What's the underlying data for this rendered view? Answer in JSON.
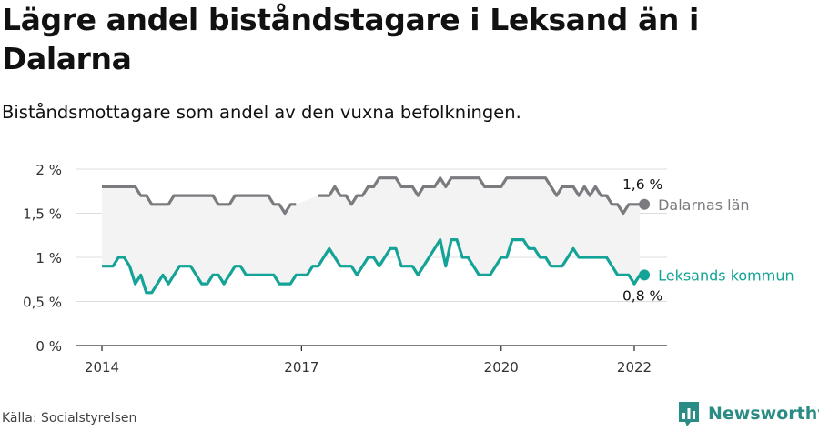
{
  "title": "Lägre andel biståndstagare i Leksand än i Dalarna",
  "subtitle": "Biståndsmottagare som andel av den vuxna befolkningen.",
  "source": "Källa: Socialstyrelsen",
  "brand": {
    "name": "Newsworthy",
    "logo_icon": "bar-chart-logo-icon"
  },
  "colors": {
    "grey_series": "#7a7a7f",
    "teal_series": "#14a396",
    "band": "#f3f3f3",
    "grid": "#dddddd"
  },
  "chart_data": {
    "type": "line",
    "title": "Lägre andel biståndstagare i Leksand än i Dalarna",
    "subtitle": "Biståndsmottagare som andel av den vuxna befolkningen.",
    "y_ticks": [
      0,
      0.5,
      1,
      1.5,
      2
    ],
    "y_tick_labels": [
      "0 %",
      "0,5 %",
      "1 %",
      "1,5 %",
      "2 %"
    ],
    "ylim": [
      0,
      2
    ],
    "x_ticks": [
      2014,
      2017,
      2020,
      2022
    ],
    "x_tick_labels": [
      "2014",
      "2017",
      "2020",
      "2022"
    ],
    "xlim": [
      2014,
      2022
    ],
    "grid": true,
    "series": [
      {
        "name": "Dalarnas län",
        "end_label": "1,6 %",
        "color": "#7a7a7f",
        "points": [
          [
            "2014-01",
            1.8
          ],
          [
            "2014-02",
            1.8
          ],
          [
            "2014-03",
            1.8
          ],
          [
            "2014-04",
            1.8
          ],
          [
            "2014-05",
            1.8
          ],
          [
            "2014-06",
            1.8
          ],
          [
            "2014-07",
            1.8
          ],
          [
            "2014-08",
            1.7
          ],
          [
            "2014-09",
            1.7
          ],
          [
            "2014-10",
            1.6
          ],
          [
            "2014-11",
            1.6
          ],
          [
            "2014-12",
            1.6
          ],
          [
            "2015-01",
            1.6
          ],
          [
            "2015-02",
            1.7
          ],
          [
            "2015-03",
            1.7
          ],
          [
            "2015-04",
            1.7
          ],
          [
            "2015-05",
            1.7
          ],
          [
            "2015-06",
            1.7
          ],
          [
            "2015-07",
            1.7
          ],
          [
            "2015-08",
            1.7
          ],
          [
            "2015-09",
            1.7
          ],
          [
            "2015-10",
            1.6
          ],
          [
            "2015-11",
            1.6
          ],
          [
            "2015-12",
            1.6
          ],
          [
            "2016-01",
            1.7
          ],
          [
            "2016-02",
            1.7
          ],
          [
            "2016-03",
            1.7
          ],
          [
            "2016-04",
            1.7
          ],
          [
            "2016-05",
            1.7
          ],
          [
            "2016-06",
            1.7
          ],
          [
            "2016-07",
            1.7
          ],
          [
            "2016-08",
            1.6
          ],
          [
            "2016-09",
            1.6
          ],
          [
            "2016-10",
            1.5
          ],
          [
            "2016-11",
            1.6
          ],
          [
            "2016-12",
            1.6
          ],
          [
            "2017-01",
            null
          ],
          [
            "2017-02",
            null
          ],
          [
            "2017-03",
            null
          ],
          [
            "2017-04",
            1.7
          ],
          [
            "2017-05",
            1.7
          ],
          [
            "2017-06",
            1.7
          ],
          [
            "2017-07",
            1.8
          ],
          [
            "2017-08",
            1.7
          ],
          [
            "2017-09",
            1.7
          ],
          [
            "2017-10",
            1.6
          ],
          [
            "2017-11",
            1.7
          ],
          [
            "2017-12",
            1.7
          ],
          [
            "2018-01",
            1.8
          ],
          [
            "2018-02",
            1.8
          ],
          [
            "2018-03",
            1.9
          ],
          [
            "2018-04",
            1.9
          ],
          [
            "2018-05",
            1.9
          ],
          [
            "2018-06",
            1.9
          ],
          [
            "2018-07",
            1.8
          ],
          [
            "2018-08",
            1.8
          ],
          [
            "2018-09",
            1.8
          ],
          [
            "2018-10",
            1.7
          ],
          [
            "2018-11",
            1.8
          ],
          [
            "2018-12",
            1.8
          ],
          [
            "2019-01",
            1.8
          ],
          [
            "2019-02",
            1.9
          ],
          [
            "2019-03",
            1.8
          ],
          [
            "2019-04",
            1.9
          ],
          [
            "2019-05",
            1.9
          ],
          [
            "2019-06",
            1.9
          ],
          [
            "2019-07",
            1.9
          ],
          [
            "2019-08",
            1.9
          ],
          [
            "2019-09",
            1.9
          ],
          [
            "2019-10",
            1.8
          ],
          [
            "2019-11",
            1.8
          ],
          [
            "2019-12",
            1.8
          ],
          [
            "2020-01",
            1.8
          ],
          [
            "2020-02",
            1.9
          ],
          [
            "2020-03",
            1.9
          ],
          [
            "2020-04",
            1.9
          ],
          [
            "2020-05",
            1.9
          ],
          [
            "2020-06",
            1.9
          ],
          [
            "2020-07",
            1.9
          ],
          [
            "2020-08",
            1.9
          ],
          [
            "2020-09",
            1.9
          ],
          [
            "2020-10",
            1.8
          ],
          [
            "2020-11",
            1.7
          ],
          [
            "2020-12",
            1.8
          ],
          [
            "2021-01",
            1.8
          ],
          [
            "2021-02",
            1.8
          ],
          [
            "2021-03",
            1.7
          ],
          [
            "2021-04",
            1.8
          ],
          [
            "2021-05",
            1.7
          ],
          [
            "2021-06",
            1.8
          ],
          [
            "2021-07",
            1.7
          ],
          [
            "2021-08",
            1.7
          ],
          [
            "2021-09",
            1.6
          ],
          [
            "2021-10",
            1.6
          ],
          [
            "2021-11",
            1.5
          ],
          [
            "2021-12",
            1.6
          ],
          [
            "2022-01",
            1.6
          ],
          [
            "2022-02",
            1.6
          ]
        ]
      },
      {
        "name": "Leksands kommun",
        "end_label": "0,8 %",
        "color": "#14a396",
        "points": [
          [
            "2014-01",
            0.9
          ],
          [
            "2014-02",
            0.9
          ],
          [
            "2014-03",
            0.9
          ],
          [
            "2014-04",
            1.0
          ],
          [
            "2014-05",
            1.0
          ],
          [
            "2014-06",
            0.9
          ],
          [
            "2014-07",
            0.7
          ],
          [
            "2014-08",
            0.8
          ],
          [
            "2014-09",
            0.6
          ],
          [
            "2014-10",
            0.6
          ],
          [
            "2014-11",
            0.7
          ],
          [
            "2014-12",
            0.8
          ],
          [
            "2015-01",
            0.7
          ],
          [
            "2015-02",
            0.8
          ],
          [
            "2015-03",
            0.9
          ],
          [
            "2015-04",
            0.9
          ],
          [
            "2015-05",
            0.9
          ],
          [
            "2015-06",
            0.8
          ],
          [
            "2015-07",
            0.7
          ],
          [
            "2015-08",
            0.7
          ],
          [
            "2015-09",
            0.8
          ],
          [
            "2015-10",
            0.8
          ],
          [
            "2015-11",
            0.7
          ],
          [
            "2015-12",
            0.8
          ],
          [
            "2016-01",
            0.9
          ],
          [
            "2016-02",
            0.9
          ],
          [
            "2016-03",
            0.8
          ],
          [
            "2016-04",
            0.8
          ],
          [
            "2016-05",
            0.8
          ],
          [
            "2016-06",
            0.8
          ],
          [
            "2016-07",
            0.8
          ],
          [
            "2016-08",
            0.8
          ],
          [
            "2016-09",
            0.7
          ],
          [
            "2016-10",
            0.7
          ],
          [
            "2016-11",
            0.7
          ],
          [
            "2016-12",
            0.8
          ],
          [
            "2017-01",
            0.8
          ],
          [
            "2017-02",
            0.8
          ],
          [
            "2017-03",
            0.9
          ],
          [
            "2017-04",
            0.9
          ],
          [
            "2017-05",
            1.0
          ],
          [
            "2017-06",
            1.1
          ],
          [
            "2017-07",
            1.0
          ],
          [
            "2017-08",
            0.9
          ],
          [
            "2017-09",
            0.9
          ],
          [
            "2017-10",
            0.9
          ],
          [
            "2017-11",
            0.8
          ],
          [
            "2017-12",
            0.9
          ],
          [
            "2018-01",
            1.0
          ],
          [
            "2018-02",
            1.0
          ],
          [
            "2018-03",
            0.9
          ],
          [
            "2018-04",
            1.0
          ],
          [
            "2018-05",
            1.1
          ],
          [
            "2018-06",
            1.1
          ],
          [
            "2018-07",
            0.9
          ],
          [
            "2018-08",
            0.9
          ],
          [
            "2018-09",
            0.9
          ],
          [
            "2018-10",
            0.8
          ],
          [
            "2018-11",
            0.9
          ],
          [
            "2018-12",
            1.0
          ],
          [
            "2019-01",
            1.1
          ],
          [
            "2019-02",
            1.2
          ],
          [
            "2019-03",
            0.9
          ],
          [
            "2019-04",
            1.2
          ],
          [
            "2019-05",
            1.2
          ],
          [
            "2019-06",
            1.0
          ],
          [
            "2019-07",
            1.0
          ],
          [
            "2019-08",
            0.9
          ],
          [
            "2019-09",
            0.8
          ],
          [
            "2019-10",
            0.8
          ],
          [
            "2019-11",
            0.8
          ],
          [
            "2019-12",
            0.9
          ],
          [
            "2020-01",
            1.0
          ],
          [
            "2020-02",
            1.0
          ],
          [
            "2020-03",
            1.2
          ],
          [
            "2020-04",
            1.2
          ],
          [
            "2020-05",
            1.2
          ],
          [
            "2020-06",
            1.1
          ],
          [
            "2020-07",
            1.1
          ],
          [
            "2020-08",
            1.0
          ],
          [
            "2020-09",
            1.0
          ],
          [
            "2020-10",
            0.9
          ],
          [
            "2020-11",
            0.9
          ],
          [
            "2020-12",
            0.9
          ],
          [
            "2021-01",
            1.0
          ],
          [
            "2021-02",
            1.1
          ],
          [
            "2021-03",
            1.0
          ],
          [
            "2021-04",
            1.0
          ],
          [
            "2021-05",
            1.0
          ],
          [
            "2021-06",
            1.0
          ],
          [
            "2021-07",
            1.0
          ],
          [
            "2021-08",
            1.0
          ],
          [
            "2021-09",
            0.9
          ],
          [
            "2021-10",
            0.8
          ],
          [
            "2021-11",
            0.8
          ],
          [
            "2021-12",
            0.8
          ],
          [
            "2022-01",
            0.7
          ],
          [
            "2022-02",
            0.8
          ]
        ]
      }
    ]
  }
}
